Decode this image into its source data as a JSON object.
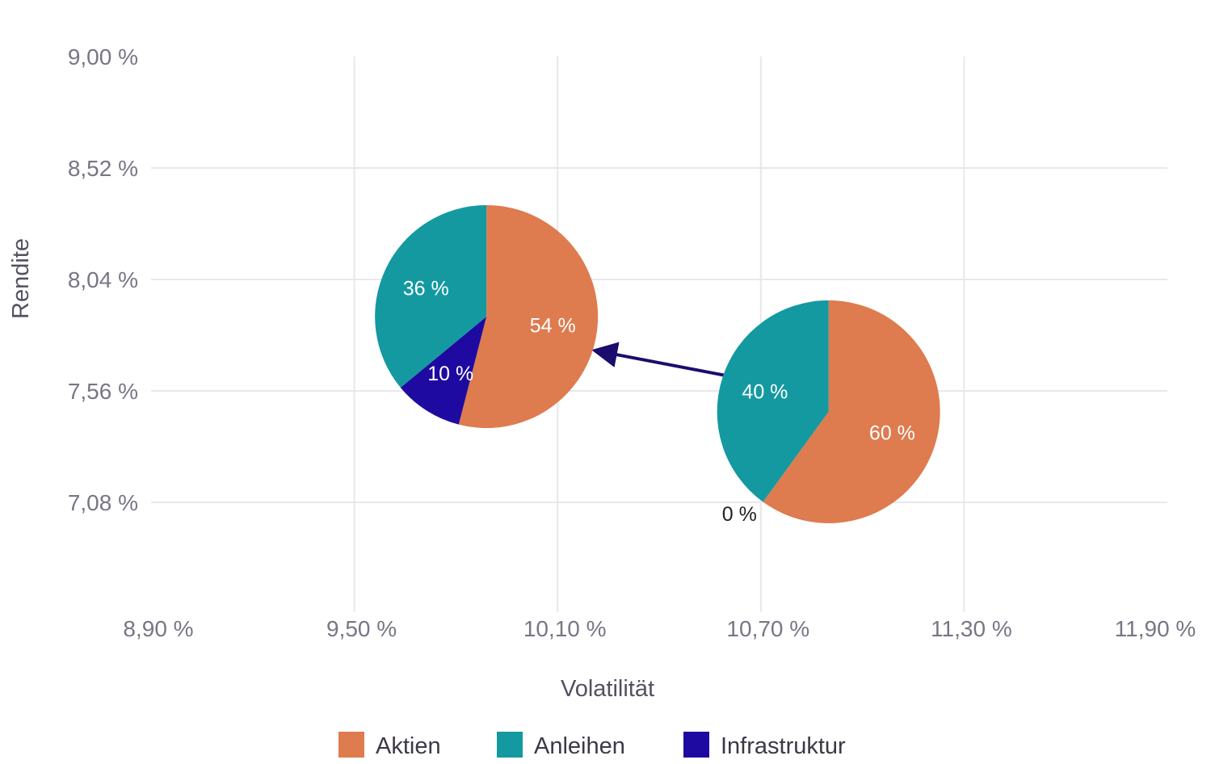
{
  "chart_data": {
    "type": "scatter",
    "marker": "pie",
    "xlabel": "Volatilität",
    "ylabel": "Rendite",
    "xlim": [
      8.9,
      11.9
    ],
    "ylim": [
      6.6,
      9.0
    ],
    "x_ticks": [
      {
        "value": 8.9,
        "label": "8,90 %"
      },
      {
        "value": 9.5,
        "label": "9,50 %"
      },
      {
        "value": 10.1,
        "label": "10,10 %"
      },
      {
        "value": 10.7,
        "label": "10,70 %"
      },
      {
        "value": 11.3,
        "label": "11,30 %"
      },
      {
        "value": 11.9,
        "label": "11,90 %"
      }
    ],
    "y_ticks": [
      {
        "value": 9.0,
        "label": "9,00 %"
      },
      {
        "value": 8.52,
        "label": "8,52 %"
      },
      {
        "value": 8.04,
        "label": "8,04 %"
      },
      {
        "value": 7.56,
        "label": "7,56 %"
      },
      {
        "value": 7.08,
        "label": "7,08 %"
      }
    ],
    "series": [
      {
        "name": "Aktien",
        "color": "#de7b4f"
      },
      {
        "name": "Anleihen",
        "color": "#1499a1"
      },
      {
        "name": "Infrastruktur",
        "color": "#1f0aa1"
      }
    ],
    "points": [
      {
        "name": "portfolio-with-infrastructure",
        "x": 9.89,
        "y": 7.88,
        "slices": [
          {
            "series": "Aktien",
            "value": 54,
            "label": "54 %"
          },
          {
            "series": "Infrastruktur",
            "value": 10,
            "label": "10 %"
          },
          {
            "series": "Anleihen",
            "value": 36,
            "label": "36 %"
          }
        ]
      },
      {
        "name": "portfolio-without-infrastructure",
        "x": 10.9,
        "y": 7.47,
        "slices": [
          {
            "series": "Aktien",
            "value": 60,
            "label": "60 %"
          },
          {
            "series": "Infrastruktur",
            "value": 0,
            "label": "0 %"
          },
          {
            "series": "Anleihen",
            "value": 40,
            "label": "40 %"
          }
        ]
      }
    ],
    "annotations": [
      {
        "type": "arrow",
        "from": [
          10.69,
          7.6
        ],
        "to": [
          10.26,
          7.72
        ],
        "color": "#1a0d6e"
      }
    ],
    "legend": {
      "position": "bottom",
      "entries": [
        "Aktien",
        "Anleihen",
        "Infrastruktur"
      ]
    }
  }
}
